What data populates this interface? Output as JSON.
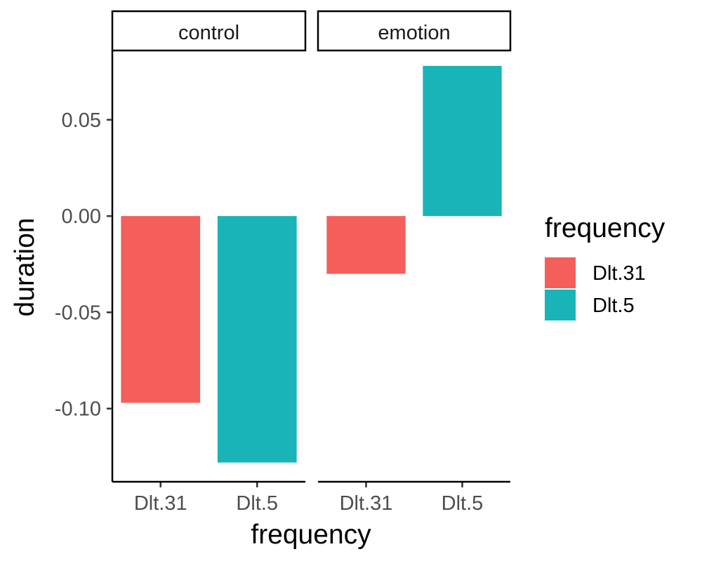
{
  "chart_data": {
    "type": "bar",
    "facets": [
      {
        "label": "control",
        "categories": [
          "Dlt.31",
          "Dlt.5"
        ],
        "values": [
          -0.097,
          -0.128
        ]
      },
      {
        "label": "emotion",
        "categories": [
          "Dlt.31",
          "Dlt.5"
        ],
        "values": [
          -0.03,
          0.078
        ]
      }
    ],
    "xlabel": "frequency",
    "ylabel": "duration",
    "ylim": [
      -0.138,
      0.086
    ],
    "yticks": [
      0.05,
      0.0,
      -0.05,
      -0.1
    ],
    "ytick_labels": [
      "0.05",
      "0.00",
      "-0.05",
      "-0.10"
    ],
    "grid": false,
    "legend": {
      "title": "frequency",
      "placement": "right",
      "items": [
        {
          "label": "Dlt.31",
          "color": "#F8766D"
        },
        {
          "label": "Dlt.5",
          "color": "#00BFC4"
        }
      ]
    },
    "colors": {
      "Dlt.31": "#F45F5B",
      "Dlt.5": "#19B4B8"
    }
  }
}
